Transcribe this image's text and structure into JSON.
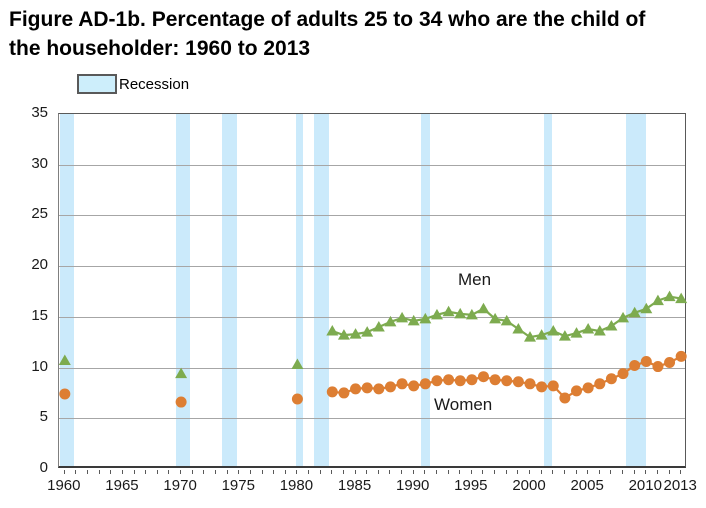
{
  "title": "Figure AD-1b. Percentage of adults 25 to 34 who are the child of the householder: 1960 to 2013",
  "legend": {
    "recession_label": "Recession"
  },
  "series_labels": {
    "men": "Men",
    "women": "Women"
  },
  "colors": {
    "men": "#7dab4f",
    "women": "#dd7e33",
    "recession_band": "#cbeafb",
    "gridline": "#a6a6a6",
    "axis": "#595959"
  },
  "chart_data": {
    "type": "line",
    "title": "Figure AD-1b. Percentage of adults 25 to 34 who are the child of the householder: 1960 to 2013",
    "xlabel": "",
    "ylabel": "",
    "ylim": [
      0,
      35
    ],
    "yticks": [
      0,
      5,
      10,
      15,
      20,
      25,
      30,
      35
    ],
    "xticks": [
      1960,
      1965,
      1970,
      1975,
      1980,
      1985,
      1990,
      1995,
      2000,
      2005,
      2010,
      2013
    ],
    "x_range": [
      1959.5,
      2013.5
    ],
    "grid": "horizontal",
    "legend_position": "top-left",
    "x": [
      1960,
      1970,
      1980,
      1983,
      1984,
      1985,
      1986,
      1987,
      1988,
      1989,
      1990,
      1991,
      1992,
      1993,
      1994,
      1995,
      1996,
      1997,
      1998,
      1999,
      2000,
      2001,
      2002,
      2003,
      2004,
      2005,
      2006,
      2007,
      2008,
      2009,
      2010,
      2011,
      2012,
      2013
    ],
    "series": [
      {
        "name": "Men",
        "marker": "triangle",
        "values": [
          10.7,
          9.4,
          10.3,
          13.6,
          13.2,
          13.3,
          13.5,
          14.0,
          14.5,
          14.9,
          14.6,
          14.8,
          15.2,
          15.5,
          15.3,
          15.2,
          15.8,
          14.8,
          14.6,
          13.8,
          13.0,
          13.2,
          13.6,
          13.1,
          13.4,
          13.8,
          13.6,
          14.1,
          14.9,
          15.4,
          15.8,
          16.6,
          17.0,
          16.8
        ]
      },
      {
        "name": "Women",
        "marker": "circle",
        "values": [
          7.4,
          6.6,
          6.9,
          7.6,
          7.5,
          7.9,
          8.0,
          7.9,
          8.1,
          8.4,
          8.2,
          8.4,
          8.7,
          8.8,
          8.7,
          8.8,
          9.1,
          8.8,
          8.7,
          8.6,
          8.4,
          8.1,
          8.2,
          7.0,
          7.7,
          8.0,
          8.4,
          8.9,
          9.4,
          10.2,
          10.6,
          10.1,
          10.5,
          11.1
        ]
      }
    ],
    "recessions": [
      [
        1959.55,
        1960.8
      ],
      [
        1969.55,
        1970.75
      ],
      [
        1973.5,
        1974.8
      ],
      [
        1979.9,
        1980.45
      ],
      [
        1981.45,
        1982.7
      ],
      [
        1990.6,
        1991.4
      ],
      [
        2001.2,
        2001.9
      ],
      [
        2008.25,
        2009.95
      ]
    ]
  }
}
